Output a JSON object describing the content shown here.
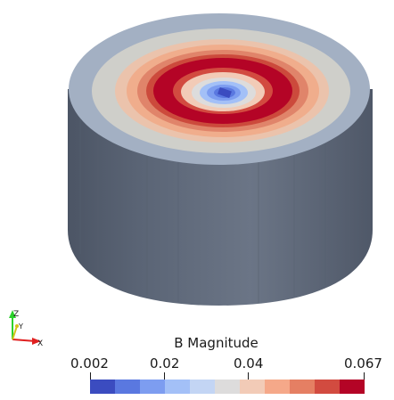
{
  "colorbar": {
    "title": "B Magnitude",
    "tick_labels": [
      "0.002",
      "0.02",
      "0.04",
      "0.067"
    ],
    "colors": [
      "#3b4cc0",
      "#5a78e0",
      "#7d9df0",
      "#a3c0f7",
      "#c3d5f4",
      "#dddcdc",
      "#f2cbb7",
      "#f5a889",
      "#e57f63",
      "#d24b40",
      "#b40426"
    ]
  },
  "orientation_axes": {
    "x_label": "X",
    "y_label": "Y",
    "z_label": "Z"
  },
  "colors": {
    "surface_side": "#5b6576",
    "surface_rim": "#a3b0c3",
    "background": "#ffffff"
  }
}
